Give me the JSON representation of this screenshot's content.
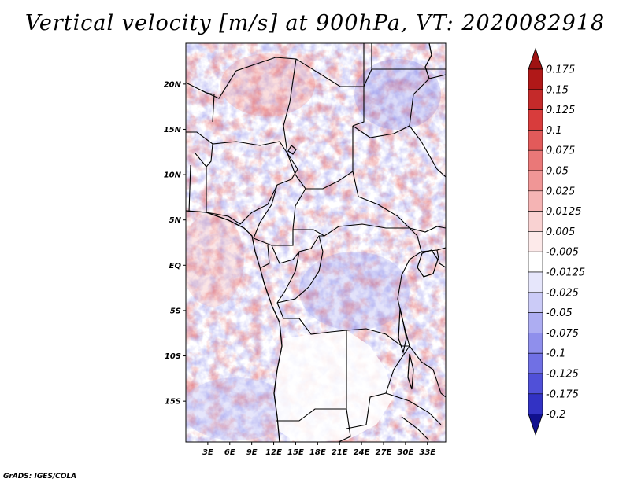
{
  "title": "Vertical velocity [m/s] at 900hPa, VT: 2020082918",
  "credit": "GrADS: IGES/COLA",
  "map": {
    "variable": "Vertical velocity",
    "units": "m/s",
    "level": "900hPa",
    "valid_time": "2020082918",
    "lat_range": [
      -19.5,
      24.5
    ],
    "lon_range": [
      0,
      35.5
    ],
    "lat_ticks": [
      {
        "value": 20,
        "label": "20N"
      },
      {
        "value": 15,
        "label": "15N"
      },
      {
        "value": 10,
        "label": "10N"
      },
      {
        "value": 5,
        "label": "5N"
      },
      {
        "value": 0,
        "label": "EQ"
      },
      {
        "value": -5,
        "label": "5S"
      },
      {
        "value": -10,
        "label": "10S"
      },
      {
        "value": -15,
        "label": "15S"
      }
    ],
    "lon_ticks": [
      {
        "value": 3,
        "label": "3E"
      },
      {
        "value": 6,
        "label": "6E"
      },
      {
        "value": 9,
        "label": "9E"
      },
      {
        "value": 12,
        "label": "12E"
      },
      {
        "value": 15,
        "label": "15E"
      },
      {
        "value": 18,
        "label": "18E"
      },
      {
        "value": 21,
        "label": "21E"
      },
      {
        "value": 24,
        "label": "24E"
      },
      {
        "value": 27,
        "label": "27E"
      },
      {
        "value": 30,
        "label": "30E"
      },
      {
        "value": 33,
        "label": "33E"
      }
    ]
  },
  "colorbar": {
    "levels": [
      {
        "label": "0.175",
        "color": "#b01818"
      },
      {
        "label": "0.15",
        "color": "#c42a2a"
      },
      {
        "label": "0.125",
        "color": "#d83c3c"
      },
      {
        "label": "0.1",
        "color": "#e25a5a"
      },
      {
        "label": "0.075",
        "color": "#ea7878"
      },
      {
        "label": "0.05",
        "color": "#f09696"
      },
      {
        "label": "0.025",
        "color": "#f5b4b4"
      },
      {
        "label": "0.0125",
        "color": "#f9d2d2"
      },
      {
        "label": "0.005",
        "color": "#fdeaea"
      },
      {
        "label": "-0.005",
        "color": "#ffffff"
      },
      {
        "label": "-0.0125",
        "color": "#e6e6fb"
      },
      {
        "label": "-0.025",
        "color": "#cbcbf7"
      },
      {
        "label": "-0.05",
        "color": "#adadf2"
      },
      {
        "label": "-0.075",
        "color": "#8f8fec"
      },
      {
        "label": "-0.1",
        "color": "#7070e4"
      },
      {
        "label": "-0.125",
        "color": "#5050d8"
      },
      {
        "label": "-0.175",
        "color": "#3232c4"
      },
      {
        "label": "-0.2",
        "color": "#1c1caa"
      }
    ],
    "top_color": "#9e1212",
    "bottom_color": "#10108e"
  }
}
